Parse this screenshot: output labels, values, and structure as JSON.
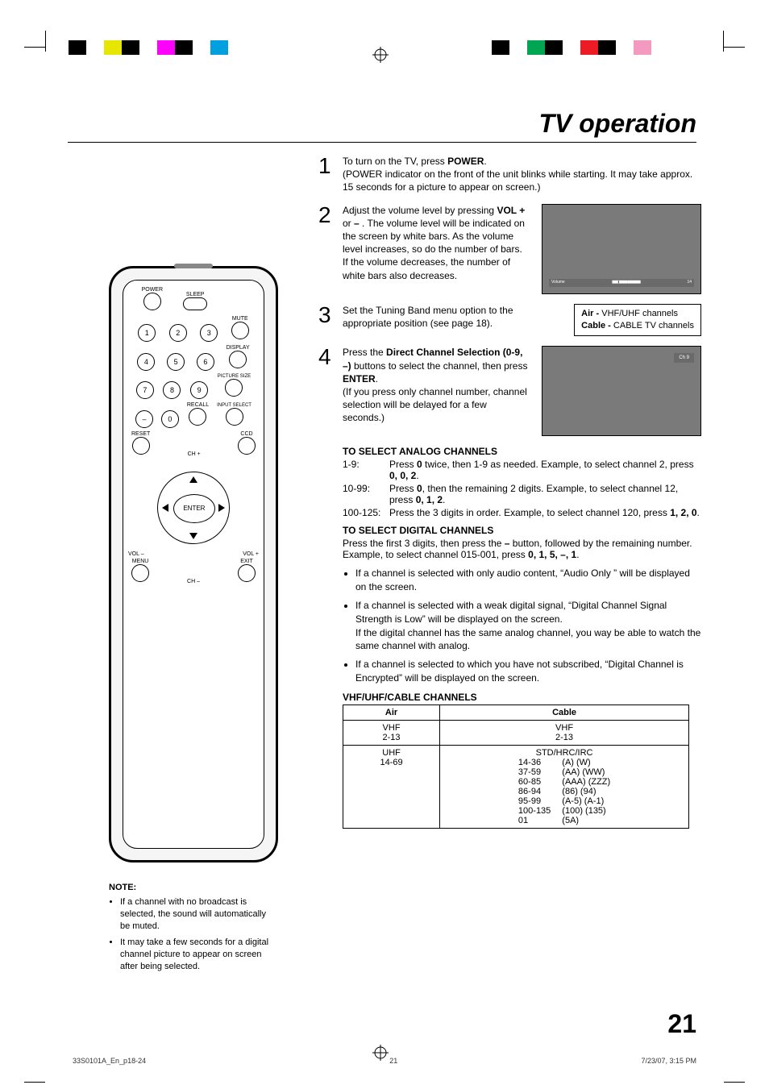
{
  "colorbars": {
    "left": [
      "#000000",
      "#ffffff",
      "#e6e600",
      "#000000",
      "#ffffff",
      "#ff00ff",
      "#000000",
      "#ffffff",
      "#00a0e0"
    ],
    "right": [
      "#000000",
      "#ffffff",
      "#00a651",
      "#000000",
      "#ffffff",
      "#ed1c24",
      "#000000",
      "#ffffff",
      "#f49ac1"
    ]
  },
  "title": "TV operation",
  "remote": {
    "labels": {
      "power": "POWER",
      "sleep": "SLEEP",
      "mute": "MUTE",
      "display": "DISPLAY",
      "pictureSize": "PICTURE SIZE",
      "recall": "RECALL",
      "inputSelect": "INPUT SELECT",
      "reset": "RESET",
      "ccd": "CCD",
      "chPlus": "CH +",
      "chMinus": "CH –",
      "volPlus": "VOL\n+",
      "volMinus": "VOL\n–",
      "menu": "MENU",
      "exit": "EXIT",
      "enter": "ENTER"
    },
    "digits": [
      "1",
      "2",
      "3",
      "4",
      "5",
      "6",
      "7",
      "8",
      "9",
      "–",
      "0"
    ]
  },
  "notes": {
    "title": "NOTE:",
    "items": [
      "If a channel with no broadcast is selected, the sound will automatically be muted.",
      "It may take a few seconds for a digital channel picture to appear on screen after being selected."
    ]
  },
  "steps": {
    "s1": {
      "intro": "To turn on the TV, press ",
      "bold1": "POWER",
      "rest": ".\n(POWER indicator on the front of the unit blinks while starting. It may take approx. 15 seconds for a picture to appear on screen.)"
    },
    "s2": {
      "line1": "Adjust the volume level by pressing ",
      "bold1": "VOL +",
      "mid1": " or ",
      "bold2": "–",
      "rest": " . The volume level will be indicated on the screen by white bars. As the volume level increases, so do the number of bars. If the volume decreases, the number of white bars also decreases.",
      "screen": {
        "volumeLabel": "Volume",
        "volumeValue": "14"
      }
    },
    "s3": {
      "text": "Set the Tuning Band menu option to the appropriate position (see page 18).",
      "box": {
        "air_label": "Air -",
        "air_text": " VHF/UHF channels",
        "cable_label": "Cable -",
        "cable_text": " CABLE TV channels"
      }
    },
    "s4": {
      "press": "Press the ",
      "bold1": "Direct Channel Selection (0-9, –)",
      "mid1": " buttons to select the channel, then press ",
      "bold2": "ENTER",
      "rest": ".\n(If you press only channel number, channel selection will be delayed for a few seconds.)",
      "screen": {
        "ch": "Ch  9"
      }
    }
  },
  "analog": {
    "title": "TO SELECT ANALOG CHANNELS",
    "rows": [
      {
        "k": "1-9:",
        "v_pre": "Press ",
        "v_b1": "0",
        "v_mid": " twice, then 1-9 as needed. Example, to select channel 2, press ",
        "v_seq": "0, 0, 2",
        "v_post": "."
      },
      {
        "k": "10-99:",
        "v_pre": "Press ",
        "v_b1": "0",
        "v_mid": ", then the remaining 2 digits. Example, to select channel 12, press ",
        "v_seq": "0, 1, 2",
        "v_post": "."
      },
      {
        "k": "100-125:",
        "v_pre": "Press the 3 digits in order. Example, to select channel 120, press ",
        "v_b1": "",
        "v_mid": "",
        "v_seq": "1, 2, 0",
        "v_post": "."
      }
    ]
  },
  "digital": {
    "title": "TO SELECT DIGITAL CHANNELS",
    "line1_pre": "Press the first 3 digits, then press the ",
    "line1_b": "–",
    "line1_post": " button, followed by the remaining number.",
    "example_pre": "Example, to select channel 015-001, press ",
    "example_seq": "0, 1, 5, –, 1",
    "example_post": ".",
    "bullets": [
      "If a channel is selected with only audio content, “Audio Only ” will be displayed on the screen.",
      "If a channel is selected with a weak digital signal, “Digital Channel Signal Strength is Low”  will be displayed on the screen.\nIf the digital channel has the same analog channel, you way be able to watch the same channel with analog.",
      "If a channel is selected to which you have not subscribed, “Digital Channel is Encrypted” will be displayed on the screen."
    ]
  },
  "vhfTable": {
    "title": "VHF/UHF/CABLE CHANNELS",
    "headers": {
      "air": "Air",
      "cable": "Cable"
    },
    "r1": {
      "air": "VHF\n2-13",
      "cable": "VHF\n2-13"
    },
    "r2": {
      "air": "UHF\n14-69",
      "cableHeader": "STD/HRC/IRC",
      "cableRows": [
        [
          "14-36",
          "(A) (W)"
        ],
        [
          "37-59",
          "(AA) (WW)"
        ],
        [
          "60-85",
          "(AAA) (ZZZ)"
        ],
        [
          "86-94",
          "(86) (94)"
        ],
        [
          "95-99",
          "(A-5) (A-1)"
        ],
        [
          "100-135",
          "(100) (135)"
        ],
        [
          "01",
          "(5A)"
        ]
      ]
    }
  },
  "pageNumber": "21",
  "footer": {
    "left": "33S0101A_En_p18-24",
    "mid": "21",
    "right": "7/23/07, 3:15 PM"
  }
}
